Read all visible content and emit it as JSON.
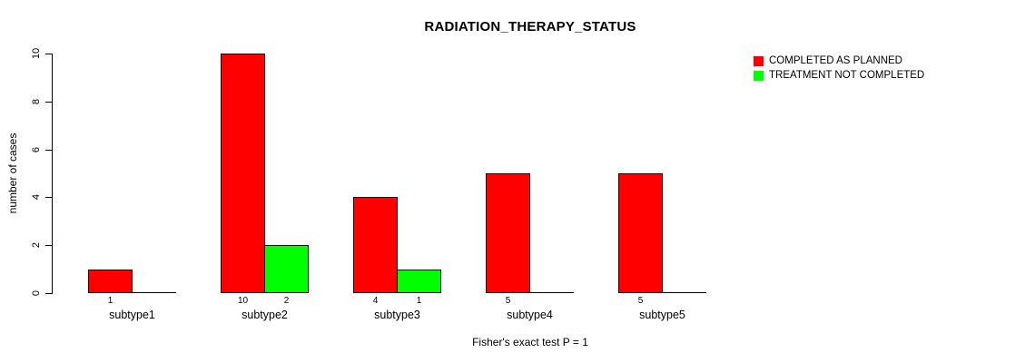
{
  "chart_data": {
    "type": "bar",
    "title": "RADIATION_THERAPY_STATUS",
    "categories": [
      "subtype1",
      "subtype2",
      "subtype3",
      "subtype4",
      "subtype5"
    ],
    "series": [
      {
        "name": "COMPLETED AS PLANNED",
        "color": "#ff0000",
        "values": [
          1,
          10,
          4,
          5,
          5
        ]
      },
      {
        "name": "TREATMENT NOT COMPLETED",
        "color": "#00ff00",
        "values": [
          0,
          2,
          1,
          0,
          0
        ]
      }
    ],
    "xlabel": "",
    "ylabel": "number of cases",
    "ylim": [
      0,
      10
    ],
    "yticks": [
      0,
      2,
      4,
      6,
      8,
      10
    ],
    "grid": false,
    "legend_position": "top-right",
    "bar_border_color": "#000000",
    "value_labels_nonzero_only": true,
    "annotation": "Fisher's exact test P = 1"
  }
}
